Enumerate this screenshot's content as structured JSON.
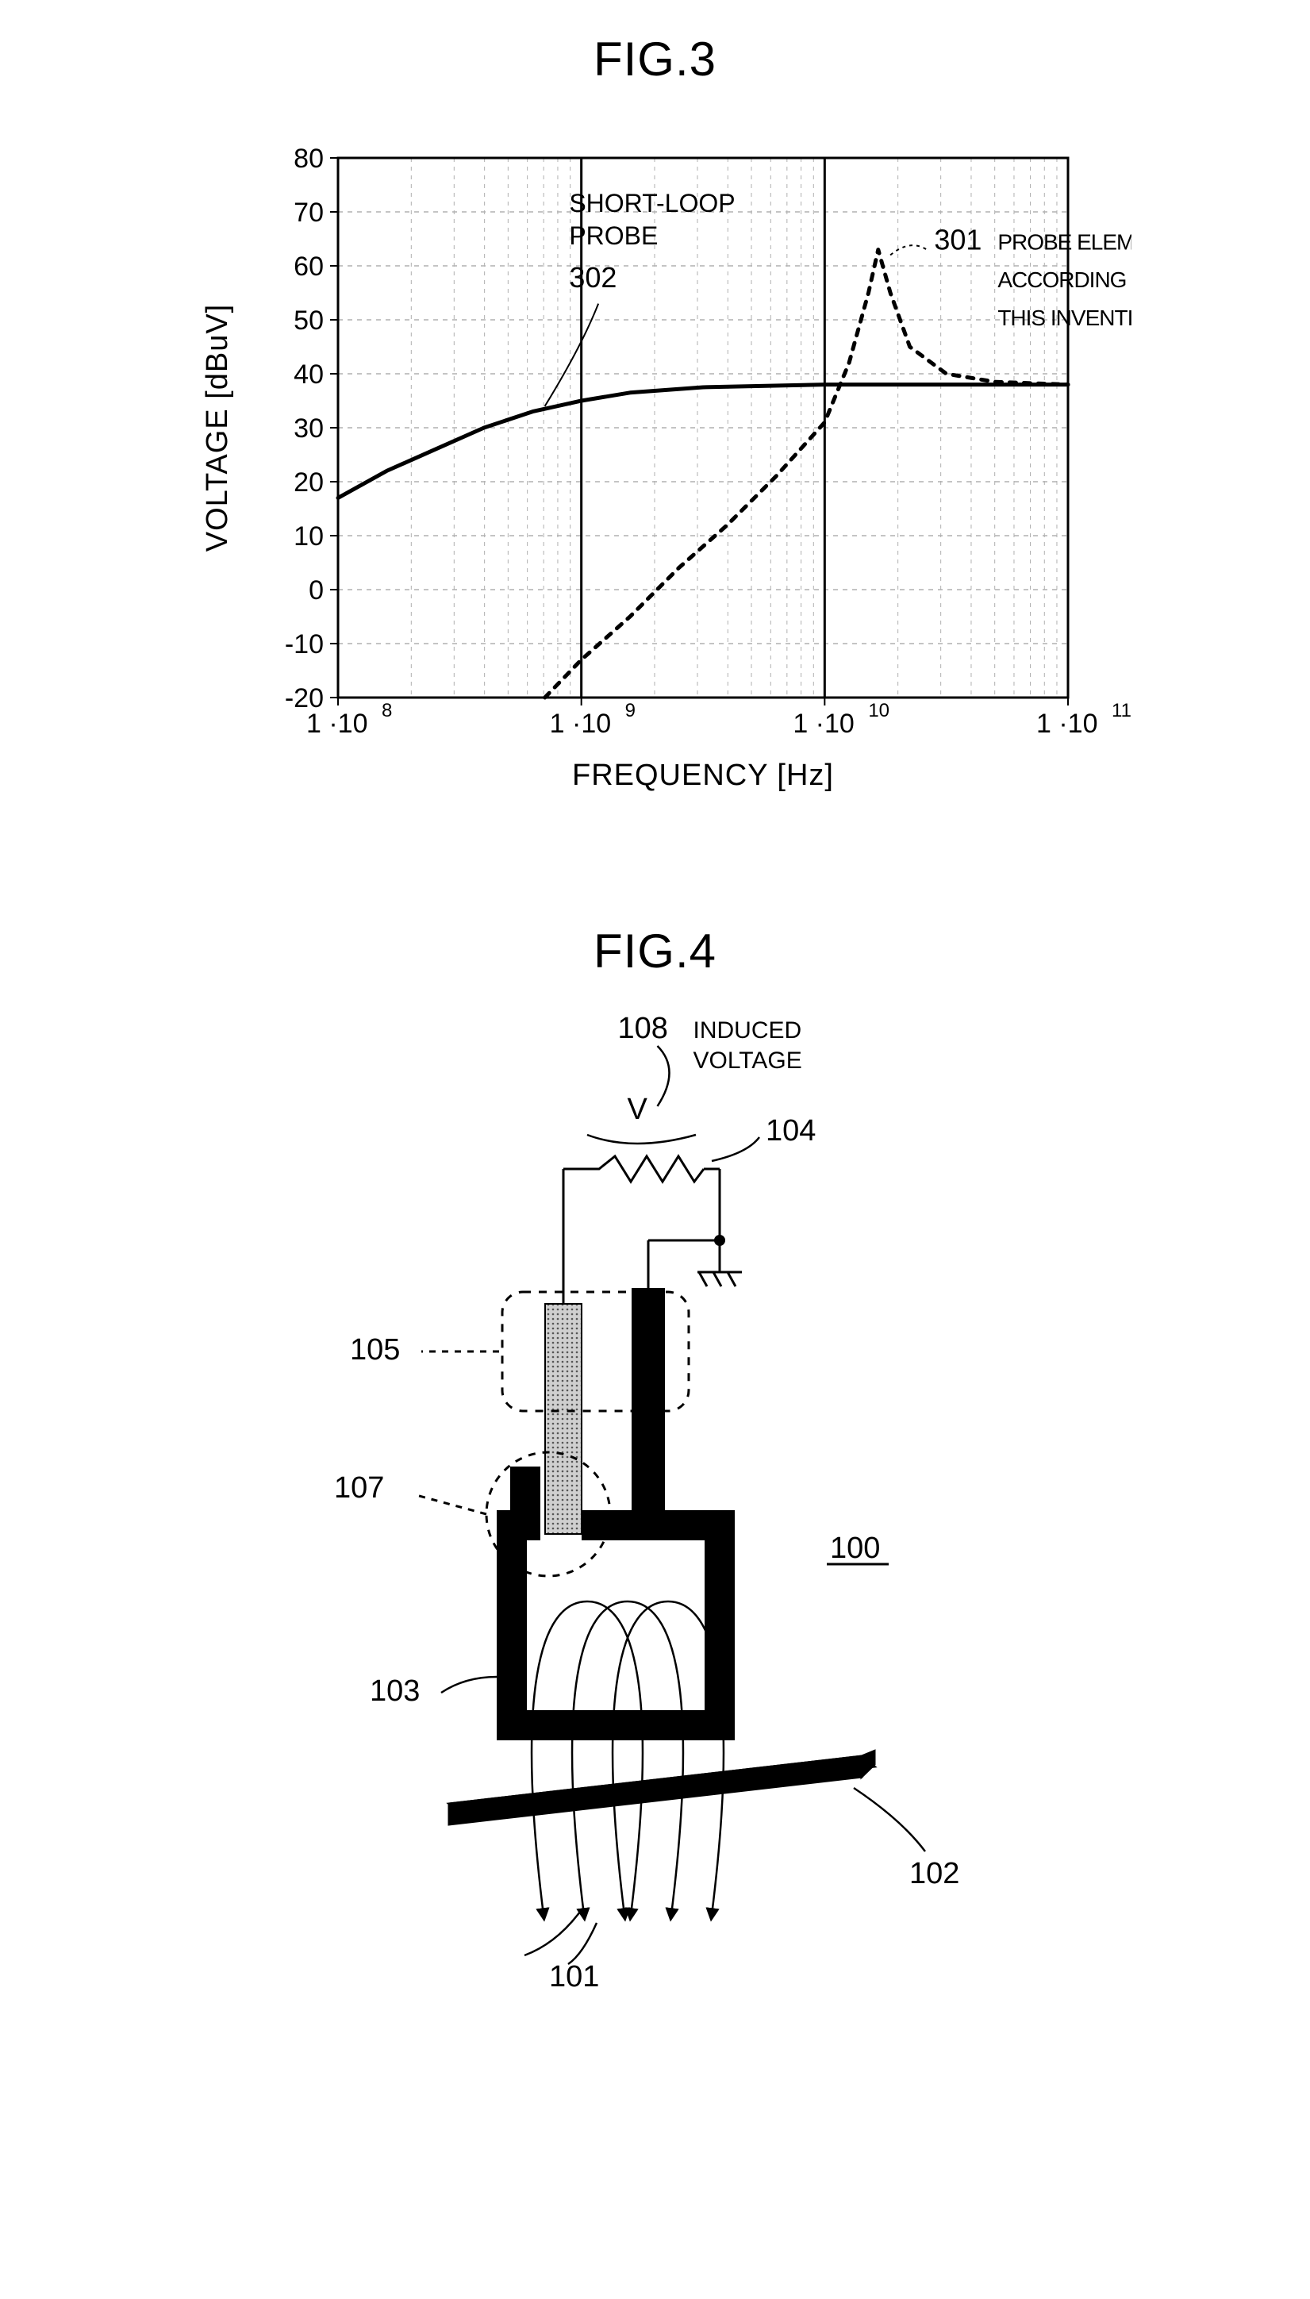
{
  "fig3": {
    "title": "FIG.3",
    "type": "line-log-x",
    "xlabel": "FREQUENCY [Hz]",
    "ylabel": "VOLTAGE [dBuV]",
    "x_log_min_exp": 8,
    "x_log_max_exp": 11,
    "ylim": [
      -20,
      80
    ],
    "ytick_step": 10,
    "background_color": "#ffffff",
    "grid_color": "#b0b0b0",
    "axis_color": "#000000",
    "title_fontsize": 60,
    "label_fontsize": 38,
    "tick_fontsize": 34,
    "series": [
      {
        "id": "302",
        "name": "SHORT-LOOP PROBE",
        "label_pos_exp": 8.8,
        "label_pos_y": 63,
        "style": "solid",
        "color": "#000000",
        "line_width": 5,
        "points": [
          {
            "x_exp": 8.0,
            "y": 17
          },
          {
            "x_exp": 8.2,
            "y": 22
          },
          {
            "x_exp": 8.4,
            "y": 26
          },
          {
            "x_exp": 8.6,
            "y": 30
          },
          {
            "x_exp": 8.8,
            "y": 33
          },
          {
            "x_exp": 9.0,
            "y": 35
          },
          {
            "x_exp": 9.2,
            "y": 36.5
          },
          {
            "x_exp": 9.5,
            "y": 37.5
          },
          {
            "x_exp": 10.0,
            "y": 38
          },
          {
            "x_exp": 10.5,
            "y": 38
          },
          {
            "x_exp": 11.0,
            "y": 38
          }
        ]
      },
      {
        "id": "301",
        "name": "PROBE ELEMENT ACCORDING TO THIS INVENTION",
        "label_pos_exp": 10.35,
        "label_pos_y": 62,
        "style": "dashed",
        "color": "#000000",
        "line_width": 5,
        "dash": "8 10",
        "points": [
          {
            "x_exp": 8.85,
            "y": -20
          },
          {
            "x_exp": 9.0,
            "y": -13
          },
          {
            "x_exp": 9.2,
            "y": -5
          },
          {
            "x_exp": 9.4,
            "y": 4
          },
          {
            "x_exp": 9.6,
            "y": 12
          },
          {
            "x_exp": 9.8,
            "y": 21
          },
          {
            "x_exp": 10.0,
            "y": 31
          },
          {
            "x_exp": 10.1,
            "y": 42
          },
          {
            "x_exp": 10.18,
            "y": 55
          },
          {
            "x_exp": 10.22,
            "y": 63
          },
          {
            "x_exp": 10.27,
            "y": 55
          },
          {
            "x_exp": 10.35,
            "y": 45
          },
          {
            "x_exp": 10.5,
            "y": 40
          },
          {
            "x_exp": 10.7,
            "y": 38.5
          },
          {
            "x_exp": 11.0,
            "y": 38
          }
        ]
      }
    ],
    "x_tick_labels": [
      "1 ·10",
      "1 ·10",
      "1 ·10",
      "1 ·10"
    ],
    "x_tick_exps": [
      "8",
      "9",
      "10",
      "11"
    ]
  },
  "fig4": {
    "title": "FIG.4",
    "type": "schematic",
    "background_color": "#ffffff",
    "stroke_color": "#000000",
    "fill_black": "#000000",
    "fill_hatch": "#9a9a9a",
    "callout_fontsize": 38,
    "labels": {
      "l100": "100",
      "l101": "101",
      "l102": "102",
      "l103": "103",
      "l104": "104",
      "l105": "105",
      "l107": "107",
      "l108_num": "108",
      "l108_txt1": "INDUCED",
      "l108_txt2": "VOLTAGE",
      "v": "V"
    }
  }
}
